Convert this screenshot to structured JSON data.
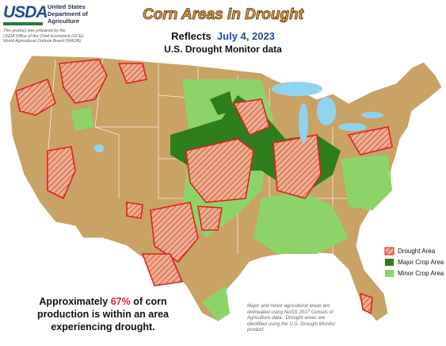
{
  "header": {
    "logo": "USDA",
    "agency": [
      "United States",
      "Department of",
      "Agriculture"
    ],
    "credit": [
      "This product was prepared by the",
      "USDA Office of the Chief Economist (OCE)",
      "World Agricultural Outlook Board (WAOB)"
    ]
  },
  "title": "Corn Areas in Drought",
  "subtitle": {
    "prefix": "Reflects",
    "date": "July 4, 2023",
    "source": "U.S. Drought Monitor data"
  },
  "legend": [
    "Drought Area",
    "Major Crop Area",
    "Minor Crop Area"
  ],
  "summary": {
    "before": "Approximately ",
    "share": "67%",
    "after": " of corn",
    "line2": "production is within an area",
    "line3": "experiencing drought."
  },
  "footnote": [
    "Major and minor agricultural areas are",
    "delineated using NASS 2017 Census of",
    "Agriculture data.  Drought areas are",
    "identified using the U.S. Drought Monitor",
    "product."
  ]
}
